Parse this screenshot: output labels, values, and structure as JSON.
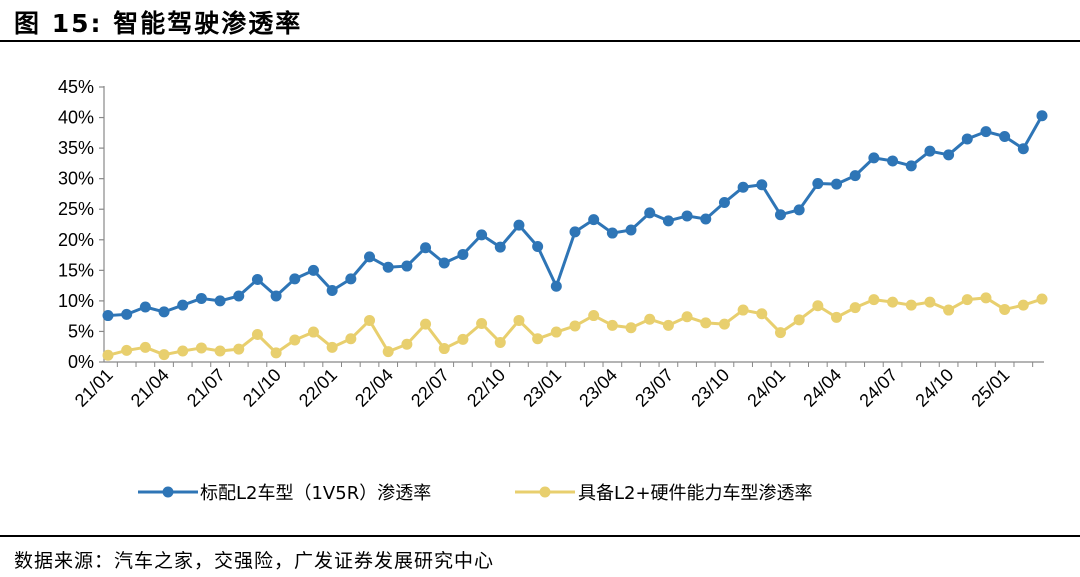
{
  "figure": {
    "title": "图 15: 智能驾驶渗透率",
    "source": "数据来源：汽车之家，交强险，广发证券发展研究中心"
  },
  "chart_data": {
    "type": "line",
    "ylim": [
      0,
      45
    ],
    "y_ticks": [
      "0%",
      "5%",
      "10%",
      "15%",
      "20%",
      "25%",
      "30%",
      "35%",
      "40%",
      "45%"
    ],
    "y_tick_values": [
      0,
      5,
      10,
      15,
      20,
      25,
      30,
      35,
      40,
      45
    ],
    "x": [
      "21/01",
      "21/02",
      "21/03",
      "21/04",
      "21/05",
      "21/06",
      "21/07",
      "21/08",
      "21/09",
      "21/10",
      "21/11",
      "21/12",
      "22/01",
      "22/02",
      "22/03",
      "22/04",
      "22/05",
      "22/06",
      "22/07",
      "22/08",
      "22/09",
      "22/10",
      "22/11",
      "22/12",
      "23/01",
      "23/02",
      "23/03",
      "23/04",
      "23/05",
      "23/06",
      "23/07",
      "23/08",
      "23/09",
      "23/10",
      "23/11",
      "23/12",
      "24/01",
      "24/02",
      "24/03",
      "24/04",
      "24/05",
      "24/06",
      "24/07",
      "24/08",
      "24/09",
      "24/10",
      "24/11",
      "24/12",
      "25/01",
      "25/02",
      "25/03"
    ],
    "x_tick_labels": [
      "21/01",
      "21/04",
      "21/07",
      "21/10",
      "22/01",
      "22/04",
      "22/07",
      "22/10",
      "23/01",
      "23/04",
      "23/07",
      "23/10",
      "24/01",
      "24/04",
      "24/07",
      "24/10",
      "25/01"
    ],
    "grid": false,
    "legend_position": "bottom",
    "series": [
      {
        "name": "标配L2车型（1V5R）渗透率",
        "color": "#2E75B6",
        "values": [
          7.6,
          7.8,
          9.0,
          8.2,
          9.3,
          10.4,
          10.0,
          10.8,
          13.5,
          10.8,
          13.6,
          15.0,
          11.7,
          13.6,
          17.2,
          15.5,
          15.7,
          18.7,
          16.2,
          17.6,
          20.8,
          18.8,
          22.4,
          18.9,
          12.4,
          21.3,
          23.3,
          21.1,
          21.6,
          24.4,
          23.1,
          23.9,
          23.4,
          26.1,
          28.6,
          29.0,
          24.1,
          24.9,
          29.2,
          29.1,
          30.5,
          33.4,
          32.9,
          32.1,
          34.5,
          33.9,
          36.5,
          37.7,
          36.9,
          34.9,
          40.3
        ]
      },
      {
        "name": "具备L2+硬件能力车型渗透率",
        "color": "#E8CF6E",
        "values": [
          1.1,
          1.9,
          2.4,
          1.2,
          1.8,
          2.3,
          1.8,
          2.1,
          4.5,
          1.5,
          3.6,
          4.9,
          2.4,
          3.8,
          6.8,
          1.7,
          2.9,
          6.2,
          2.2,
          3.7,
          6.3,
          3.2,
          6.8,
          3.8,
          4.9,
          5.9,
          7.6,
          6.0,
          5.6,
          7.0,
          6.0,
          7.4,
          6.4,
          6.2,
          8.5,
          7.9,
          4.8,
          6.9,
          9.2,
          7.3,
          8.9,
          10.2,
          9.8,
          9.3,
          9.8,
          8.5,
          10.2,
          10.5,
          8.6,
          9.3,
          10.3
        ]
      }
    ]
  }
}
